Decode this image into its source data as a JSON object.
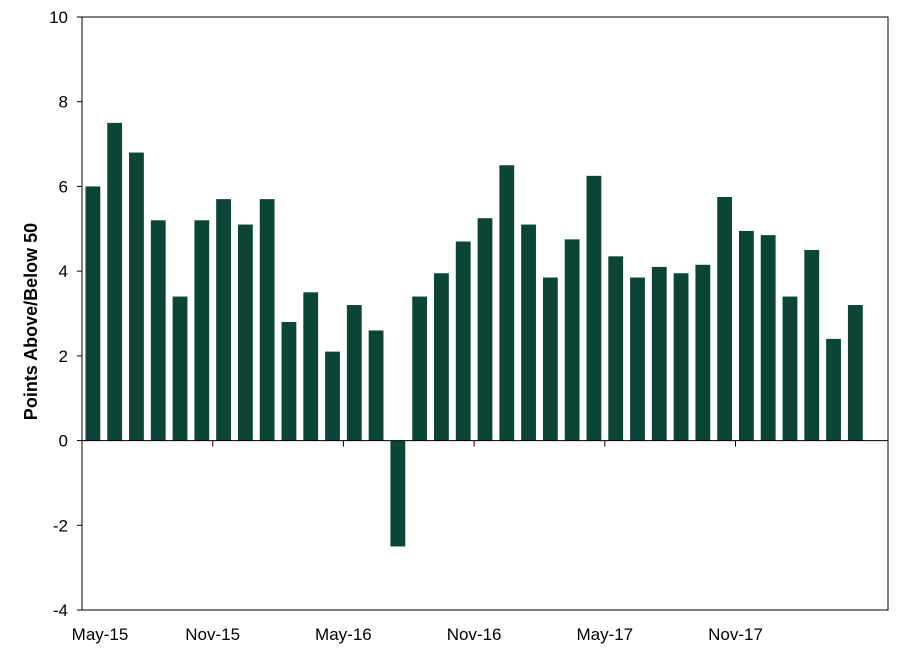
{
  "chart_data": {
    "type": "bar",
    "title": "",
    "xlabel": "",
    "ylabel": "Points Above/Below 50",
    "ylim": [
      -4,
      10
    ],
    "yticks": [
      -4,
      -2,
      0,
      2,
      4,
      6,
      8,
      10
    ],
    "grid": false,
    "legend": "none",
    "bar_color": "#0b4537",
    "x_tick_labels": [
      "May-15",
      "Nov-15",
      "May-16",
      "Nov-16",
      "May-17",
      "Nov-17"
    ],
    "x_tick_positions": [
      "May-15",
      "Nov-15",
      "May-16",
      "Nov-16",
      "May-17",
      "Nov-17"
    ],
    "categories": [
      "May-15",
      "Jun-15",
      "Jul-15",
      "Aug-15",
      "Sep-15",
      "Oct-15",
      "Nov-15",
      "Dec-15",
      "Jan-16",
      "Feb-16",
      "Mar-16",
      "Apr-16",
      "May-16",
      "Jun-16",
      "Jul-16",
      "Aug-16",
      "Sep-16",
      "Oct-16",
      "Nov-16",
      "Dec-16",
      "Jan-17",
      "Feb-17",
      "Mar-17",
      "Apr-17",
      "May-17",
      "Jun-17",
      "Jul-17",
      "Aug-17",
      "Sep-17",
      "Oct-17",
      "Nov-17",
      "Dec-17",
      "Jan-18",
      "Feb-18",
      "Mar-18",
      "Apr-18",
      "May-18"
    ],
    "values": [
      6.0,
      7.5,
      6.8,
      5.2,
      3.4,
      5.2,
      5.7,
      5.1,
      5.7,
      2.8,
      3.5,
      2.1,
      3.2,
      2.6,
      -2.5,
      3.4,
      3.95,
      4.7,
      5.25,
      6.5,
      5.1,
      3.85,
      4.75,
      6.25,
      4.35,
      3.85,
      4.1,
      3.95,
      4.15,
      5.75,
      4.95,
      4.85,
      3.4,
      4.5,
      2.4,
      3.2,
      0
    ]
  }
}
